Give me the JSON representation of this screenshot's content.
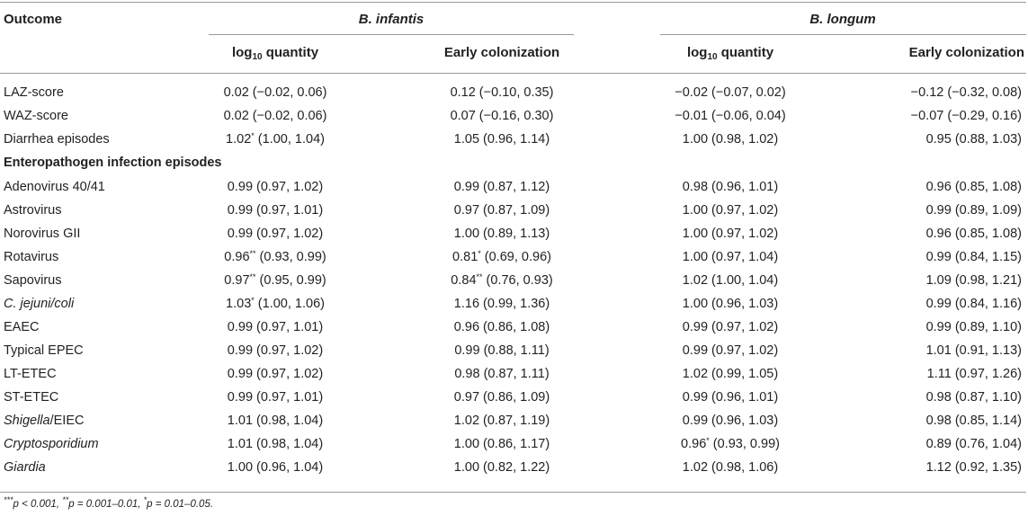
{
  "table": {
    "outcome_header": "Outcome",
    "groups": [
      {
        "label": "B. infantis"
      },
      {
        "label": "B. longum"
      }
    ],
    "col_heads": {
      "log_prefix": "log",
      "log_sub": "10",
      "log_suffix": " quantity",
      "early": "Early colonization"
    },
    "section_label": "Enteropathogen infection episodes",
    "rows_top": [
      {
        "label": "LAZ-score",
        "c1": "0.02 (−0.02, 0.06)",
        "c2": "0.12 (−0.10, 0.35)",
        "c3": "−0.02 (−0.07, 0.02)",
        "c4": "−0.12 (−0.32, 0.08)"
      },
      {
        "label": "WAZ-score",
        "c1": "0.02 (−0.02, 0.06)",
        "c2": "0.07 (−0.16, 0.30)",
        "c3": "−0.01 (−0.06, 0.04)",
        "c4": "−0.07 (−0.29, 0.16)"
      },
      {
        "label": "Diarrhea episodes",
        "c1": "1.02",
        "c1_sup": "*",
        "c1_ci": " (1.00, 1.04)",
        "c2": "1.05 (0.96, 1.14)",
        "c3": "1.00 (0.98, 1.02)",
        "c4": "0.95 (0.88, 1.03)"
      }
    ],
    "rows_pathogens": [
      {
        "label": "Adenovirus 40/41",
        "c1": "0.99 (0.97, 1.02)",
        "c2": "0.99 (0.87, 1.12)",
        "c3": "0.98 (0.96, 1.01)",
        "c4": "0.96 (0.85, 1.08)"
      },
      {
        "label": "Astrovirus",
        "c1": "0.99 (0.97, 1.01)",
        "c2": "0.97 (0.87, 1.09)",
        "c3": "1.00 (0.97, 1.02)",
        "c4": "0.99 (0.89, 1.09)"
      },
      {
        "label": "Norovirus GII",
        "c1": "0.99 (0.97, 1.02)",
        "c2": "1.00 (0.89, 1.13)",
        "c3": "1.00 (0.97, 1.02)",
        "c4": "0.96 (0.85, 1.08)"
      },
      {
        "label": "Rotavirus",
        "c1_val": "0.96",
        "c1_sup": "**",
        "c1_ci": " (0.93, 0.99)",
        "c2_val": "0.81",
        "c2_sup": "*",
        "c2_ci": " (0.69, 0.96)",
        "c3": "1.00 (0.97, 1.04)",
        "c4": "0.99 (0.84, 1.15)"
      },
      {
        "label": "Sapovirus",
        "c1_val": "0.97",
        "c1_sup": "**",
        "c1_ci": " (0.95, 0.99)",
        "c2_val": "0.84",
        "c2_sup": "**",
        "c2_ci": " (0.76, 0.93)",
        "c3": "1.02 (1.00, 1.04)",
        "c4": "1.09 (0.98, 1.21)"
      },
      {
        "label": "C. jejuni/coli",
        "c1_val": "1.03",
        "c1_sup": "*",
        "c1_ci": " (1.00, 1.06)",
        "c2": "1.16 (0.99, 1.36)",
        "c3": "1.00 (0.96, 1.03)",
        "c4": "0.99 (0.84, 1.16)"
      },
      {
        "label": "EAEC",
        "c1": "0.99 (0.97, 1.01)",
        "c2": "0.96 (0.86, 1.08)",
        "c3": "0.99 (0.97, 1.02)",
        "c4": "0.99 (0.89, 1.10)"
      },
      {
        "label": "Typical EPEC",
        "c1": "0.99 (0.97, 1.02)",
        "c2": "0.99 (0.88, 1.11)",
        "c3": "0.99 (0.97, 1.02)",
        "c4": "1.01 (0.91, 1.13)"
      },
      {
        "label": "LT-ETEC",
        "c1": "0.99 (0.97, 1.02)",
        "c2": "0.98 (0.87, 1.11)",
        "c3": "1.02 (0.99, 1.05)",
        "c4": "1.11 (0.97, 1.26)"
      },
      {
        "label": "ST-ETEC",
        "c1": "0.99 (0.97, 1.01)",
        "c2": "0.97 (0.86, 1.09)",
        "c3": "0.99 (0.96, 1.01)",
        "c4": "0.98 (0.87, 1.10)"
      },
      {
        "label_ital": "Shigella",
        "label_rest": "/EIEC",
        "c1": "1.01 (0.98, 1.04)",
        "c2": "1.02 (0.87, 1.19)",
        "c3": "0.99 (0.96, 1.03)",
        "c4": "0.98 (0.85, 1.14)"
      },
      {
        "label": "Cryptosporidium",
        "c1": "1.01 (0.98, 1.04)",
        "c2": "1.00 (0.86, 1.17)",
        "c3_val": "0.96",
        "c3_sup": "*",
        "c3_ci": " (0.93, 0.99)",
        "c4": "0.89 (0.76, 1.04)"
      },
      {
        "label": "Giardia",
        "c1": "1.00 (0.96, 1.04)",
        "c2": "1.00 (0.82, 1.22)",
        "c3": "1.02 (0.98, 1.06)",
        "c4": "1.12 (0.92, 1.35)"
      }
    ],
    "footnote": {
      "s1": "***",
      "t1": "p < 0.001, ",
      "s2": "**",
      "t2": "p = 0.001–0.01, ",
      "s3": "*",
      "t3": "p = 0.01–0.05."
    }
  }
}
